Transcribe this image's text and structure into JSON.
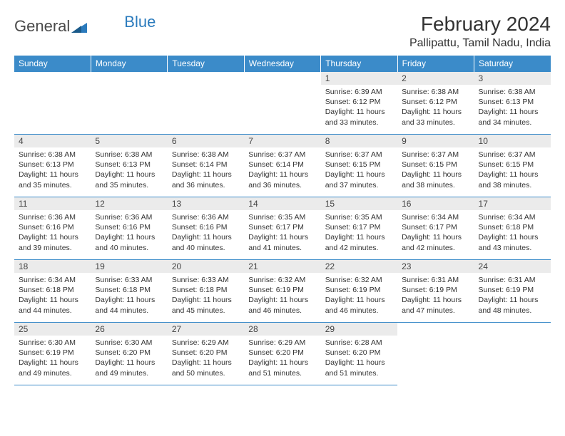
{
  "logo": {
    "text1": "General",
    "text2": "Blue"
  },
  "title": "February 2024",
  "location": "Pallipattu, Tamil Nadu, India",
  "headers": [
    "Sunday",
    "Monday",
    "Tuesday",
    "Wednesday",
    "Thursday",
    "Friday",
    "Saturday"
  ],
  "colors": {
    "header_bg": "#3b8bc9",
    "header_text": "#ffffff",
    "daynum_bg": "#ebebeb",
    "border": "#3b8bc9"
  },
  "weeks": [
    [
      null,
      null,
      null,
      null,
      {
        "n": "1",
        "sr": "6:39 AM",
        "ss": "6:12 PM",
        "dl": "11 hours and 33 minutes."
      },
      {
        "n": "2",
        "sr": "6:38 AM",
        "ss": "6:12 PM",
        "dl": "11 hours and 33 minutes."
      },
      {
        "n": "3",
        "sr": "6:38 AM",
        "ss": "6:13 PM",
        "dl": "11 hours and 34 minutes."
      }
    ],
    [
      {
        "n": "4",
        "sr": "6:38 AM",
        "ss": "6:13 PM",
        "dl": "11 hours and 35 minutes."
      },
      {
        "n": "5",
        "sr": "6:38 AM",
        "ss": "6:13 PM",
        "dl": "11 hours and 35 minutes."
      },
      {
        "n": "6",
        "sr": "6:38 AM",
        "ss": "6:14 PM",
        "dl": "11 hours and 36 minutes."
      },
      {
        "n": "7",
        "sr": "6:37 AM",
        "ss": "6:14 PM",
        "dl": "11 hours and 36 minutes."
      },
      {
        "n": "8",
        "sr": "6:37 AM",
        "ss": "6:15 PM",
        "dl": "11 hours and 37 minutes."
      },
      {
        "n": "9",
        "sr": "6:37 AM",
        "ss": "6:15 PM",
        "dl": "11 hours and 38 minutes."
      },
      {
        "n": "10",
        "sr": "6:37 AM",
        "ss": "6:15 PM",
        "dl": "11 hours and 38 minutes."
      }
    ],
    [
      {
        "n": "11",
        "sr": "6:36 AM",
        "ss": "6:16 PM",
        "dl": "11 hours and 39 minutes."
      },
      {
        "n": "12",
        "sr": "6:36 AM",
        "ss": "6:16 PM",
        "dl": "11 hours and 40 minutes."
      },
      {
        "n": "13",
        "sr": "6:36 AM",
        "ss": "6:16 PM",
        "dl": "11 hours and 40 minutes."
      },
      {
        "n": "14",
        "sr": "6:35 AM",
        "ss": "6:17 PM",
        "dl": "11 hours and 41 minutes."
      },
      {
        "n": "15",
        "sr": "6:35 AM",
        "ss": "6:17 PM",
        "dl": "11 hours and 42 minutes."
      },
      {
        "n": "16",
        "sr": "6:34 AM",
        "ss": "6:17 PM",
        "dl": "11 hours and 42 minutes."
      },
      {
        "n": "17",
        "sr": "6:34 AM",
        "ss": "6:18 PM",
        "dl": "11 hours and 43 minutes."
      }
    ],
    [
      {
        "n": "18",
        "sr": "6:34 AM",
        "ss": "6:18 PM",
        "dl": "11 hours and 44 minutes."
      },
      {
        "n": "19",
        "sr": "6:33 AM",
        "ss": "6:18 PM",
        "dl": "11 hours and 44 minutes."
      },
      {
        "n": "20",
        "sr": "6:33 AM",
        "ss": "6:18 PM",
        "dl": "11 hours and 45 minutes."
      },
      {
        "n": "21",
        "sr": "6:32 AM",
        "ss": "6:19 PM",
        "dl": "11 hours and 46 minutes."
      },
      {
        "n": "22",
        "sr": "6:32 AM",
        "ss": "6:19 PM",
        "dl": "11 hours and 46 minutes."
      },
      {
        "n": "23",
        "sr": "6:31 AM",
        "ss": "6:19 PM",
        "dl": "11 hours and 47 minutes."
      },
      {
        "n": "24",
        "sr": "6:31 AM",
        "ss": "6:19 PM",
        "dl": "11 hours and 48 minutes."
      }
    ],
    [
      {
        "n": "25",
        "sr": "6:30 AM",
        "ss": "6:19 PM",
        "dl": "11 hours and 49 minutes."
      },
      {
        "n": "26",
        "sr": "6:30 AM",
        "ss": "6:20 PM",
        "dl": "11 hours and 49 minutes."
      },
      {
        "n": "27",
        "sr": "6:29 AM",
        "ss": "6:20 PM",
        "dl": "11 hours and 50 minutes."
      },
      {
        "n": "28",
        "sr": "6:29 AM",
        "ss": "6:20 PM",
        "dl": "11 hours and 51 minutes."
      },
      {
        "n": "29",
        "sr": "6:28 AM",
        "ss": "6:20 PM",
        "dl": "11 hours and 51 minutes."
      },
      null,
      null
    ]
  ]
}
